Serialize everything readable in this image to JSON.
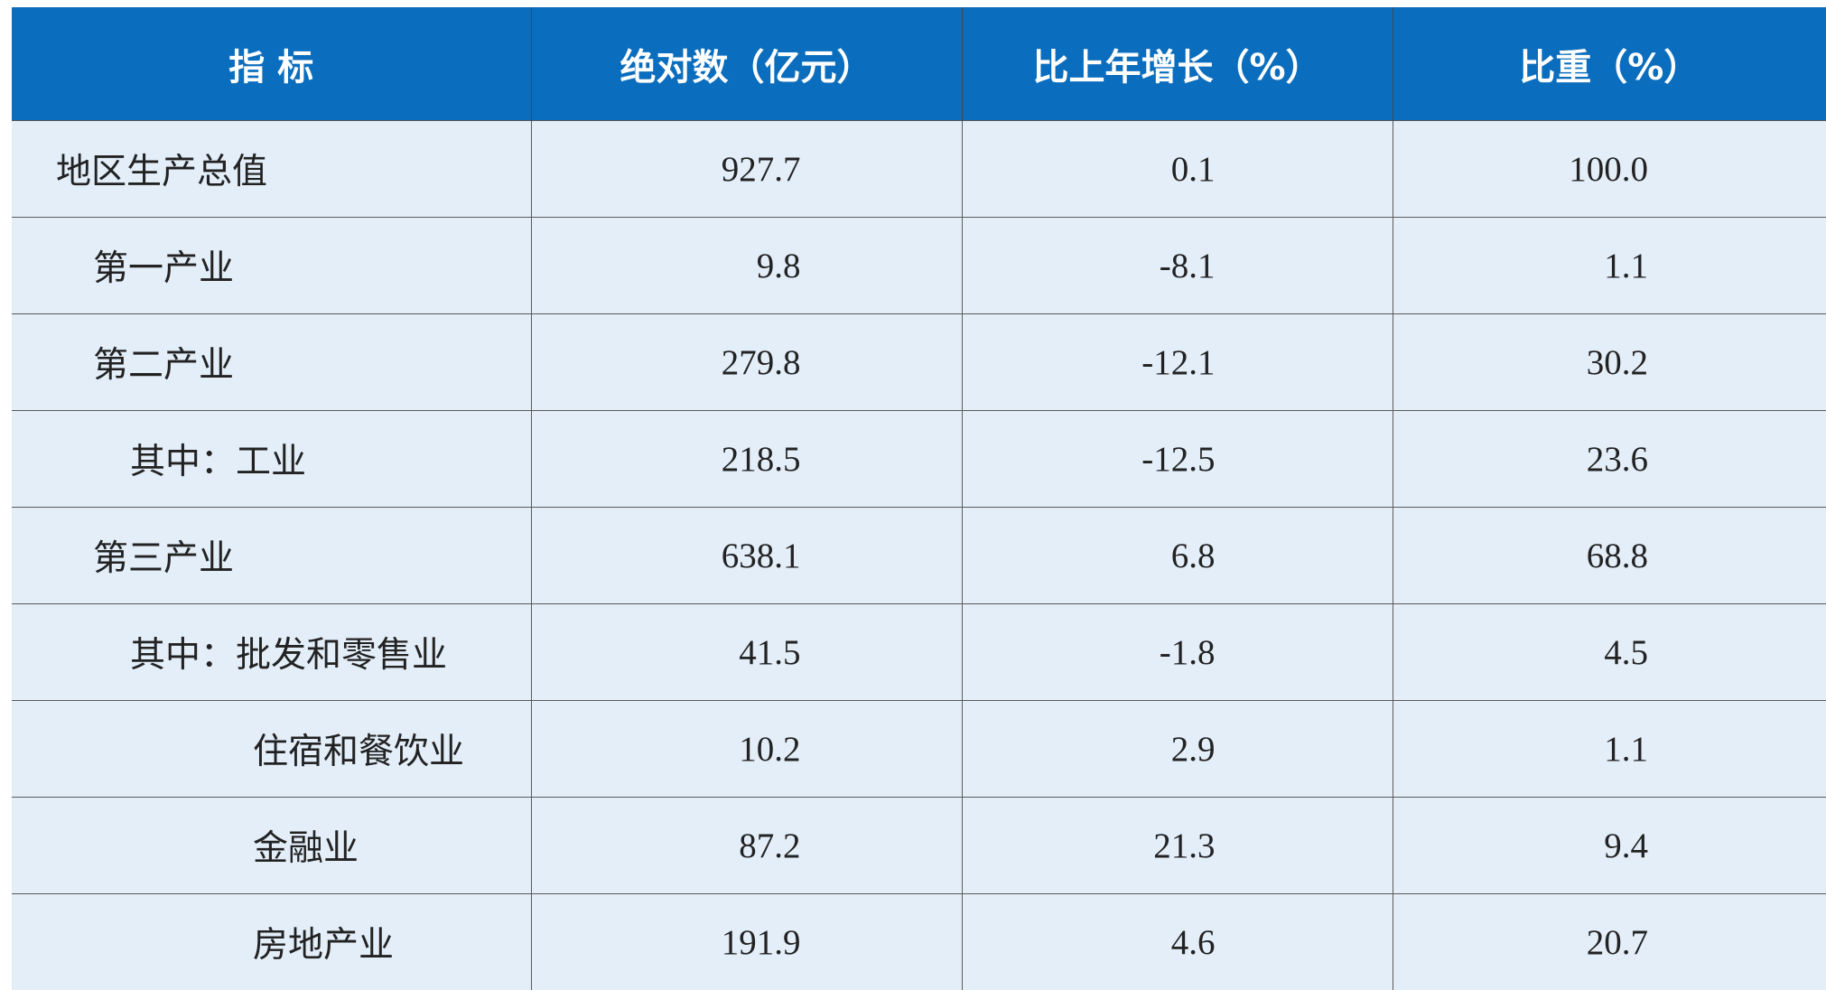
{
  "table": {
    "header": [
      "指  标",
      "绝对数（亿元）",
      "比上年增长（%）",
      "比重（%）"
    ],
    "rows": [
      [
        "地区生产总值",
        "927.7",
        "0.1",
        "100.0"
      ],
      [
        "第一产业",
        "9.8",
        "-8.1",
        "1.1"
      ],
      [
        "第二产业",
        "279.8",
        "-12.1",
        "30.2"
      ],
      [
        "其中：工业",
        "218.5",
        "-12.5",
        "23.6"
      ],
      [
        "第三产业",
        "638.1",
        "6.8",
        "68.8"
      ],
      [
        "其中：批发和零售业",
        "41.5",
        "-1.8",
        "4.5"
      ],
      [
        "住宿和餐饮业",
        "10.2",
        "2.9",
        "1.1"
      ],
      [
        "金融业",
        "87.2",
        "21.3",
        "9.4"
      ],
      [
        "房地产业",
        "191.9",
        "4.6",
        "20.7"
      ]
    ]
  }
}
